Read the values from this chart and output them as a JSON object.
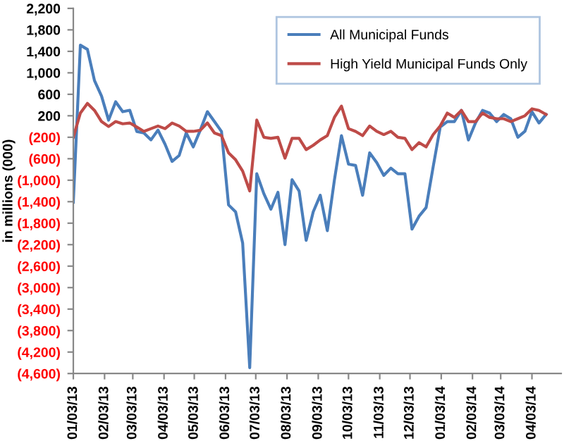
{
  "chart_data": {
    "type": "line",
    "ylabel": "in millions (000)",
    "x": [
      "2013-01-03",
      "2013-01-10",
      "2013-01-17",
      "2013-01-24",
      "2013-01-31",
      "2013-02-07",
      "2013-02-14",
      "2013-02-21",
      "2013-02-28",
      "2013-03-07",
      "2013-03-14",
      "2013-03-21",
      "2013-03-28",
      "2013-04-04",
      "2013-04-11",
      "2013-04-18",
      "2013-04-25",
      "2013-05-02",
      "2013-05-09",
      "2013-05-16",
      "2013-05-23",
      "2013-05-30",
      "2013-06-06",
      "2013-06-13",
      "2013-06-20",
      "2013-06-27",
      "2013-07-04",
      "2013-07-11",
      "2013-07-18",
      "2013-07-25",
      "2013-08-01",
      "2013-08-08",
      "2013-08-15",
      "2013-08-22",
      "2013-08-29",
      "2013-09-05",
      "2013-09-12",
      "2013-09-19",
      "2013-09-26",
      "2013-10-03",
      "2013-10-10",
      "2013-10-17",
      "2013-10-24",
      "2013-10-31",
      "2013-11-07",
      "2013-11-14",
      "2013-11-21",
      "2013-11-28",
      "2013-12-05",
      "2013-12-12",
      "2013-12-19",
      "2013-12-26",
      "2014-01-02",
      "2014-01-09",
      "2014-01-16",
      "2014-01-23",
      "2014-01-30",
      "2014-02-06",
      "2014-02-13",
      "2014-02-20",
      "2014-02-27",
      "2014-03-06",
      "2014-03-13",
      "2014-03-20",
      "2014-03-27",
      "2014-04-03",
      "2014-04-10",
      "2014-04-17"
    ],
    "series": [
      {
        "name": "All Municipal Funds",
        "color": "#4a7ebb",
        "values": [
          -1410,
          1515,
          1436,
          856,
          566,
          118,
          461,
          276,
          303,
          -92,
          -120,
          -250,
          -66,
          -330,
          -650,
          -540,
          -120,
          -380,
          -66,
          276,
          92,
          -92,
          -1460,
          -1590,
          -2170,
          -4490,
          -880,
          -1250,
          -1540,
          -1225,
          -2200,
          -990,
          -1200,
          -2120,
          -1590,
          -1280,
          -1940,
          -1000,
          -170,
          -700,
          -725,
          -1280,
          -490,
          -670,
          -910,
          -775,
          -880,
          -880,
          -1910,
          -1670,
          -1510,
          -750,
          -10,
          92,
          92,
          300,
          -250,
          66,
          300,
          250,
          92,
          224,
          145,
          -200,
          -90,
          276,
          66,
          224
        ]
      },
      {
        "name": "High Yield Municipal Funds Only",
        "color": "#be4b48",
        "values": [
          -200,
          250,
          430,
          300,
          92,
          0,
          92,
          50,
          66,
          -10,
          -90,
          -40,
          10,
          -40,
          66,
          10,
          -90,
          -90,
          -70,
          66,
          -120,
          -170,
          -490,
          -620,
          -830,
          -1200,
          120,
          -200,
          -220,
          -200,
          -590,
          -220,
          -220,
          -430,
          -350,
          -250,
          -170,
          170,
          380,
          -40,
          -90,
          -170,
          10,
          -90,
          -150,
          -90,
          -200,
          -220,
          -430,
          -300,
          -380,
          -150,
          10,
          250,
          170,
          300,
          92,
          92,
          250,
          170,
          145,
          145,
          92,
          145,
          200,
          330,
          300,
          224
        ]
      }
    ],
    "xlim": [
      "2013-01-03",
      "2014-05-02"
    ],
    "xticks": [
      {
        "value": "2013-01-03",
        "label": "01/03/13"
      },
      {
        "value": "2013-02-03",
        "label": "02/03/13"
      },
      {
        "value": "2013-03-03",
        "label": "03/03/13"
      },
      {
        "value": "2013-04-03",
        "label": "04/03/13"
      },
      {
        "value": "2013-05-03",
        "label": "05/03/13"
      },
      {
        "value": "2013-06-03",
        "label": "06/03/13"
      },
      {
        "value": "2013-07-03",
        "label": "07/03/13"
      },
      {
        "value": "2013-08-03",
        "label": "08/03/13"
      },
      {
        "value": "2013-09-03",
        "label": "09/03/13"
      },
      {
        "value": "2013-10-03",
        "label": "10/03/13"
      },
      {
        "value": "2013-11-03",
        "label": "11/03/13"
      },
      {
        "value": "2013-12-03",
        "label": "12/03/13"
      },
      {
        "value": "2014-01-03",
        "label": "01/03/14"
      },
      {
        "value": "2014-02-03",
        "label": "02/03/14"
      },
      {
        "value": "2014-03-03",
        "label": "03/03/14"
      },
      {
        "value": "2014-04-03",
        "label": "04/03/14"
      }
    ],
    "ylim": [
      -4600,
      2200
    ],
    "yticks": [
      {
        "value": 2200,
        "label": "2,200"
      },
      {
        "value": 1800,
        "label": "1,800"
      },
      {
        "value": 1400,
        "label": "1,400"
      },
      {
        "value": 1000,
        "label": "1,000"
      },
      {
        "value": 600,
        "label": "600"
      },
      {
        "value": 200,
        "label": "200"
      },
      {
        "value": -200,
        "label": "(200)"
      },
      {
        "value": -600,
        "label": "(600)"
      },
      {
        "value": -1000,
        "label": "(1,000)"
      },
      {
        "value": -1400,
        "label": "(1,400)"
      },
      {
        "value": -1800,
        "label": "(1,800)"
      },
      {
        "value": -2200,
        "label": "(2,200)"
      },
      {
        "value": -2600,
        "label": "(2,600)"
      },
      {
        "value": -3000,
        "label": "(3,000)"
      },
      {
        "value": -3400,
        "label": "(3,400)"
      },
      {
        "value": -3800,
        "label": "(3,800)"
      },
      {
        "value": -4200,
        "label": "(4,200)"
      },
      {
        "value": -4600,
        "label": "(4,600)"
      }
    ],
    "grid": false,
    "legend": "top right",
    "marker": "none",
    "line_style": "solid"
  }
}
